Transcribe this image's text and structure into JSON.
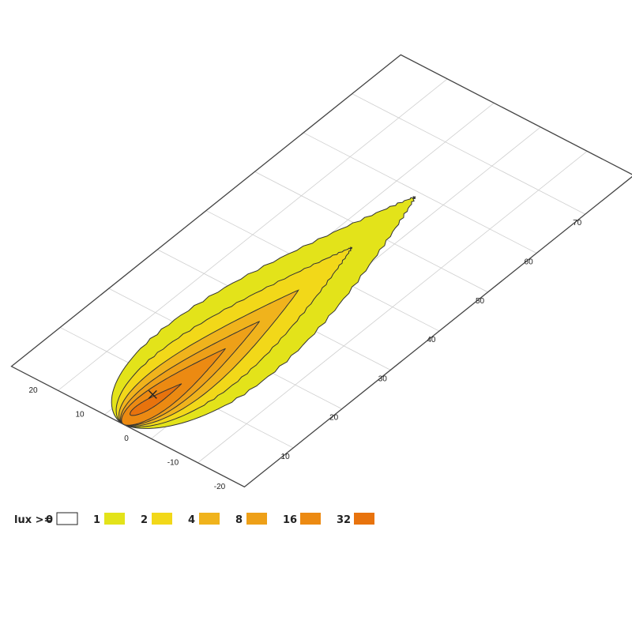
{
  "chart_data": {
    "type": "heatmap",
    "title": "",
    "legend": {
      "label": "lux >=",
      "placement": "bottom-left",
      "levels": [
        {
          "value": "0",
          "color": "#ffffff"
        },
        {
          "value": "1",
          "color": "#e3e31a"
        },
        {
          "value": "2",
          "color": "#f2d819"
        },
        {
          "value": "4",
          "color": "#f0b31c"
        },
        {
          "value": "8",
          "color": "#eea018"
        },
        {
          "value": "16",
          "color": "#ec8a12"
        },
        {
          "value": "32",
          "color": "#e8730d"
        }
      ]
    },
    "x_axis": {
      "label": "",
      "range": [
        0,
        80
      ],
      "ticks": [
        "10",
        "20",
        "30",
        "40",
        "50",
        "60",
        "70"
      ]
    },
    "y_axis": {
      "label": "",
      "range": [
        -25,
        25
      ],
      "ticks": [
        "20",
        "10",
        "0",
        "-10",
        "-20"
      ]
    },
    "grid": true,
    "contours": [
      {
        "lux": 1,
        "x_start": 0,
        "x_end": 59,
        "half_width": 21.5
      },
      {
        "lux": 2,
        "x_start": 0,
        "x_end": 46,
        "half_width": 15
      },
      {
        "lux": 4,
        "x_start": 0,
        "x_end": 35,
        "half_width": 10.5
      },
      {
        "lux": 8,
        "x_start": 0,
        "x_end": 27,
        "half_width": 7.5
      },
      {
        "lux": 16,
        "x_start": 0,
        "x_end": 20,
        "half_width": 5.5
      },
      {
        "lux": 32,
        "x_start": 2,
        "x_end": 11,
        "half_width": 2.2
      }
    ],
    "source_marker": {
      "x": 7,
      "y": 2
    }
  }
}
